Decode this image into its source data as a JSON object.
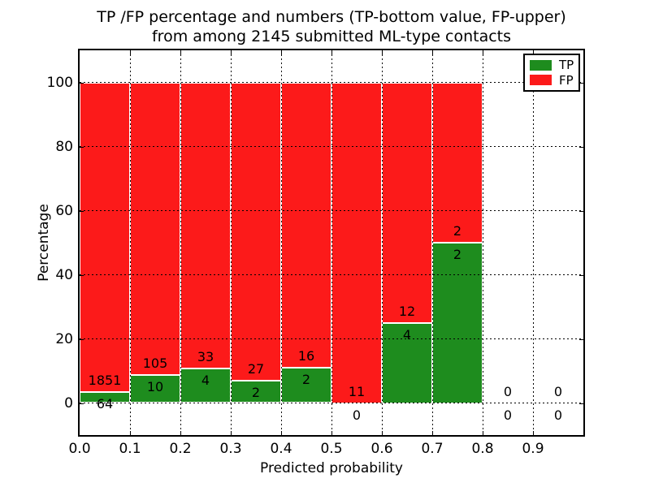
{
  "figure": {
    "title_line1": "TP /FP percentage and numbers (TP-bottom value, FP-upper)",
    "title_line2": "from among 2145 submitted ML-type contacts"
  },
  "chart_data": {
    "type": "bar",
    "stacked": true,
    "title": "TP /FP percentage and numbers (TP-bottom value, FP-upper)\nfrom among 2145 submitted ML-type contacts",
    "xlabel": "Predicted probability",
    "ylabel": "Percentage",
    "xlim": [
      0.0,
      1.0
    ],
    "ylim": [
      -10,
      110
    ],
    "grid": "dotted",
    "legend_position": "upper right",
    "bin_width": 0.1,
    "bin_starts": [
      0.0,
      0.1,
      0.2,
      0.3,
      0.4,
      0.5,
      0.6,
      0.7,
      0.8,
      0.9
    ],
    "x_tick_labels": [
      "0.0",
      "0.1",
      "0.2",
      "0.3",
      "0.4",
      "0.5",
      "0.6",
      "0.7",
      "0.8",
      "0.9"
    ],
    "y_ticks": [
      0,
      20,
      40,
      60,
      80,
      100
    ],
    "series": [
      {
        "name": "TP",
        "color": "#1e8c1e",
        "counts": [
          64,
          10,
          4,
          2,
          2,
          0,
          4,
          2,
          0,
          0
        ]
      },
      {
        "name": "FP",
        "color": "#fc1a1a",
        "counts": [
          1851,
          105,
          33,
          27,
          16,
          11,
          12,
          2,
          0,
          0
        ]
      }
    ],
    "tp_percentages": [
      3.3,
      8.7,
      10.8,
      6.9,
      11.1,
      0.0,
      25.0,
      50.0,
      null,
      null
    ],
    "total_contacts": 2145,
    "bar_edge_color": "#ffffff",
    "annotation_note": "TP count shown below segment boundary, FP count shown above boundary"
  },
  "legend": {
    "items": [
      {
        "label": "TP",
        "color": "#1e8c1e"
      },
      {
        "label": "FP",
        "color": "#fc1a1a"
      }
    ]
  }
}
